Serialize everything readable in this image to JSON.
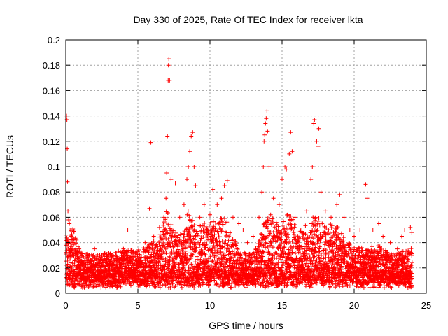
{
  "chart_data": {
    "type": "scatter",
    "title": "Day 330 of 2025, Rate Of TEC Index for receiver lkta",
    "xlabel": "GPS time / hours",
    "ylabel": "ROTI / TECUs",
    "xlim": [
      0,
      25
    ],
    "ylim": [
      0,
      0.2
    ],
    "xticks": [
      "0",
      "5",
      "10",
      "15",
      "20",
      "25"
    ],
    "yticks": [
      "0",
      "0.02",
      "0.04",
      "0.06",
      "0.08",
      "0.1",
      "0.12",
      "0.14",
      "0.16",
      "0.18",
      "0.2"
    ],
    "grid": true,
    "marker": "+",
    "color": "#ff0000",
    "points": [
      [
        0.05,
        0.14
      ],
      [
        0.08,
        0.137
      ],
      [
        0.1,
        0.114
      ],
      [
        0.12,
        0.088
      ],
      [
        0.15,
        0.065
      ],
      [
        0.2,
        0.058
      ],
      [
        0.25,
        0.055
      ],
      [
        0.3,
        0.05
      ],
      [
        0.4,
        0.045
      ],
      [
        0.5,
        0.04
      ],
      [
        0.7,
        0.035
      ],
      [
        1.0,
        0.03
      ],
      [
        1.5,
        0.03
      ],
      [
        2.0,
        0.035
      ],
      [
        2.5,
        0.03
      ],
      [
        3.0,
        0.03
      ],
      [
        3.5,
        0.032
      ],
      [
        4.0,
        0.035
      ],
      [
        4.3,
        0.05
      ],
      [
        4.7,
        0.033
      ],
      [
        5.0,
        0.033
      ],
      [
        5.5,
        0.04
      ],
      [
        5.8,
        0.067
      ],
      [
        5.9,
        0.119
      ],
      [
        6.1,
        0.045
      ],
      [
        6.5,
        0.052
      ],
      [
        6.8,
        0.06
      ],
      [
        6.95,
        0.075
      ],
      [
        7.0,
        0.095
      ],
      [
        7.05,
        0.124
      ],
      [
        7.1,
        0.168
      ],
      [
        7.12,
        0.18
      ],
      [
        7.15,
        0.185
      ],
      [
        7.2,
        0.168
      ],
      [
        7.3,
        0.09
      ],
      [
        7.6,
        0.087
      ],
      [
        7.9,
        0.06
      ],
      [
        8.2,
        0.07
      ],
      [
        8.4,
        0.09
      ],
      [
        8.5,
        0.1
      ],
      [
        8.6,
        0.112
      ],
      [
        8.7,
        0.124
      ],
      [
        8.8,
        0.127
      ],
      [
        8.9,
        0.1
      ],
      [
        9.0,
        0.085
      ],
      [
        9.3,
        0.06
      ],
      [
        9.6,
        0.07
      ],
      [
        10.0,
        0.062
      ],
      [
        10.2,
        0.082
      ],
      [
        10.5,
        0.07
      ],
      [
        10.8,
        0.075
      ],
      [
        11.0,
        0.085
      ],
      [
        11.2,
        0.089
      ],
      [
        11.6,
        0.06
      ],
      [
        12.0,
        0.055
      ],
      [
        12.3,
        0.05
      ],
      [
        12.6,
        0.04
      ],
      [
        13.0,
        0.045
      ],
      [
        13.4,
        0.06
      ],
      [
        13.6,
        0.08
      ],
      [
        13.7,
        0.1
      ],
      [
        13.75,
        0.12
      ],
      [
        13.8,
        0.125
      ],
      [
        13.85,
        0.134
      ],
      [
        13.9,
        0.138
      ],
      [
        13.95,
        0.144
      ],
      [
        14.0,
        0.128
      ],
      [
        14.1,
        0.1
      ],
      [
        14.4,
        0.075
      ],
      [
        14.8,
        0.07
      ],
      [
        15.0,
        0.09
      ],
      [
        15.2,
        0.1
      ],
      [
        15.3,
        0.098
      ],
      [
        15.5,
        0.11
      ],
      [
        15.6,
        0.127
      ],
      [
        15.7,
        0.112
      ],
      [
        15.9,
        0.06
      ],
      [
        16.3,
        0.05
      ],
      [
        16.7,
        0.065
      ],
      [
        17.0,
        0.09
      ],
      [
        17.1,
        0.1
      ],
      [
        17.2,
        0.134
      ],
      [
        17.25,
        0.137
      ],
      [
        17.4,
        0.12
      ],
      [
        17.5,
        0.116
      ],
      [
        17.55,
        0.13
      ],
      [
        17.7,
        0.08
      ],
      [
        18.0,
        0.065
      ],
      [
        18.4,
        0.06
      ],
      [
        18.8,
        0.07
      ],
      [
        19.0,
        0.078
      ],
      [
        19.3,
        0.06
      ],
      [
        19.7,
        0.05
      ],
      [
        20.0,
        0.045
      ],
      [
        20.4,
        0.05
      ],
      [
        20.8,
        0.086
      ],
      [
        20.9,
        0.075
      ],
      [
        21.3,
        0.05
      ],
      [
        21.7,
        0.055
      ],
      [
        22.0,
        0.045
      ],
      [
        22.5,
        0.04
      ],
      [
        23.0,
        0.035
      ],
      [
        23.3,
        0.045
      ],
      [
        23.5,
        0.05
      ],
      [
        23.9,
        0.052
      ],
      [
        24.0,
        0.048
      ]
    ],
    "band": {
      "x_step": 0.02,
      "envelope": [
        [
          0,
          0.04
        ],
        [
          0.5,
          0.045
        ],
        [
          1,
          0.026
        ],
        [
          2,
          0.024
        ],
        [
          3,
          0.026
        ],
        [
          4,
          0.028
        ],
        [
          5,
          0.028
        ],
        [
          6,
          0.034
        ],
        [
          6.5,
          0.04
        ],
        [
          7,
          0.06
        ],
        [
          7.5,
          0.045
        ],
        [
          8,
          0.04
        ],
        [
          8.5,
          0.06
        ],
        [
          9,
          0.045
        ],
        [
          9.5,
          0.05
        ],
        [
          10,
          0.05
        ],
        [
          10.5,
          0.052
        ],
        [
          11,
          0.055
        ],
        [
          11.5,
          0.04
        ],
        [
          12,
          0.03
        ],
        [
          12.5,
          0.025
        ],
        [
          13,
          0.025
        ],
        [
          13.5,
          0.04
        ],
        [
          14,
          0.06
        ],
        [
          14.5,
          0.05
        ],
        [
          15,
          0.05
        ],
        [
          15.5,
          0.06
        ],
        [
          16,
          0.045
        ],
        [
          16.5,
          0.045
        ],
        [
          17,
          0.055
        ],
        [
          17.5,
          0.055
        ],
        [
          18,
          0.045
        ],
        [
          18.5,
          0.05
        ],
        [
          19,
          0.045
        ],
        [
          19.5,
          0.035
        ],
        [
          20,
          0.03
        ],
        [
          20.5,
          0.03
        ],
        [
          21,
          0.03
        ],
        [
          21.5,
          0.032
        ],
        [
          22,
          0.03
        ],
        [
          22.5,
          0.025
        ],
        [
          23,
          0.025
        ],
        [
          23.5,
          0.028
        ],
        [
          24,
          0.03
        ]
      ]
    }
  }
}
